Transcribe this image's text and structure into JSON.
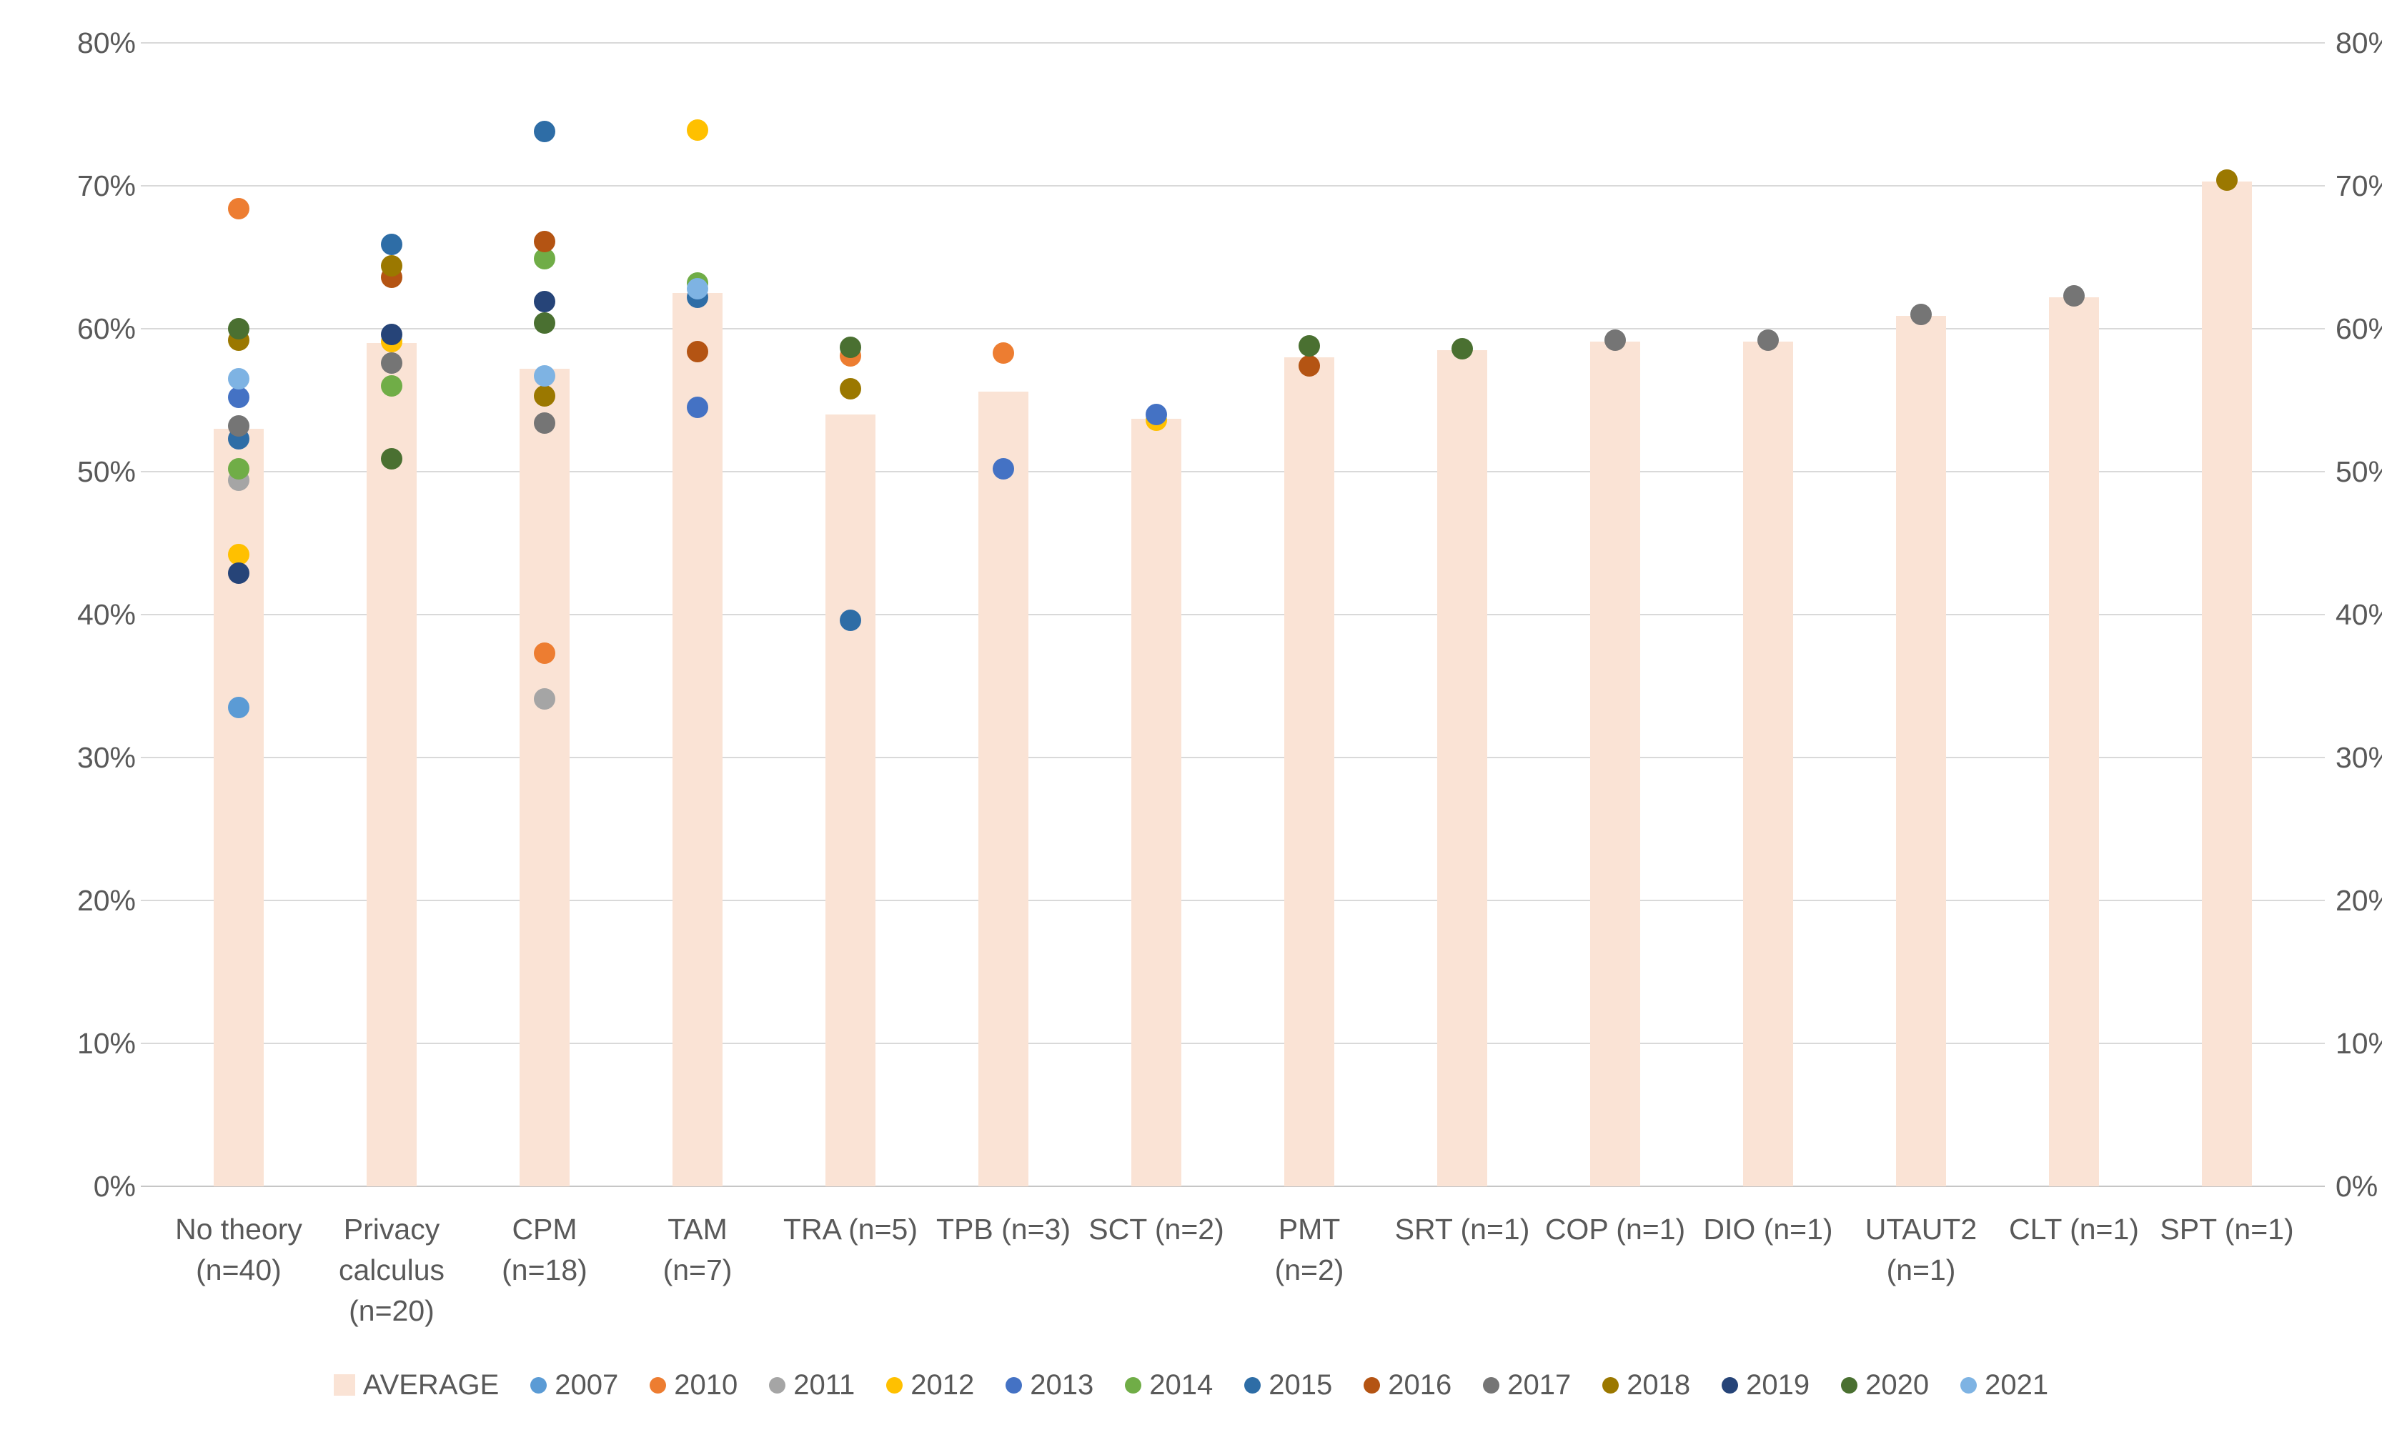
{
  "chart_data": {
    "type": "bar+scatter",
    "description": "Average percentage per theory (bars) with per-year average points (dots)",
    "y_axis": {
      "min": 0,
      "max": 80,
      "tick_step": 10,
      "tick_labels": [
        "0%",
        "10%",
        "20%",
        "30%",
        "40%",
        "50%",
        "60%",
        "70%",
        "80%"
      ],
      "mirrored_right_axis": true,
      "gridlines": true
    },
    "legend_position": "bottom",
    "bar_series_label": "AVERAGE",
    "year_series": [
      "2007",
      "2010",
      "2011",
      "2012",
      "2013",
      "2014",
      "2015",
      "2016",
      "2017",
      "2018",
      "2019",
      "2020",
      "2021"
    ],
    "colors": {
      "AVERAGE": "#FAE3D5",
      "2007": "#5B9BD5",
      "2010": "#ED7D31",
      "2011": "#A5A5A5",
      "2012": "#FFC000",
      "2013": "#4472C4",
      "2014": "#70AD47",
      "2015": "#2E6DA6",
      "2016": "#B45413",
      "2017": "#757575",
      "2018": "#9B7800",
      "2019": "#264478",
      "2020": "#4A7031",
      "2021": "#7EB3E3",
      "gridline": "#D9D9D9",
      "axis_text": "#595959"
    },
    "categories": [
      {
        "label": "No theory (n=40)",
        "label_lines": [
          "No theory",
          "(n=40)"
        ],
        "n": 40,
        "average": 53.0,
        "points": {
          "2010": 68.4,
          "2020": 60.0,
          "2018": 59.2,
          "2021": 56.5,
          "2013": 55.2,
          "2017": 53.2,
          "2015": 52.3,
          "2014": 50.2,
          "2011": 49.4,
          "2012": 44.2,
          "2019": 42.9,
          "2007": 33.5
        }
      },
      {
        "label": "Privacy calculus (n=20)",
        "label_lines": [
          "Privacy",
          "calculus",
          "(n=20)"
        ],
        "n": 20,
        "average": 59.0,
        "points": {
          "2015": 65.9,
          "2018": 64.4,
          "2016": 63.6,
          "2019": 59.6,
          "2012": 59.1,
          "2017": 57.6,
          "2014": 56.0,
          "2020": 50.9
        }
      },
      {
        "label": "CPM (n=18)",
        "label_lines": [
          "CPM",
          "(n=18)"
        ],
        "n": 18,
        "average": 57.2,
        "points": {
          "2015": 73.8,
          "2016": 66.1,
          "2014": 64.9,
          "2019": 61.9,
          "2020": 60.4,
          "2021": 56.7,
          "2018": 55.3,
          "2017": 53.4,
          "2010": 37.3,
          "2011": 34.1
        }
      },
      {
        "label": "TAM (n=7)",
        "label_lines": [
          "TAM",
          "(n=7)"
        ],
        "n": 7,
        "average": 62.5,
        "points": {
          "2012": 73.9,
          "2014": 63.2,
          "2021": 62.8,
          "2015": 62.2,
          "2016": 58.4,
          "2013": 54.5
        }
      },
      {
        "label": "TRA (n=5)",
        "label_lines": [
          "TRA (n=5)"
        ],
        "n": 5,
        "average": 54.0,
        "points": {
          "2020": 58.7,
          "2010": 58.1,
          "2018": 55.8,
          "2015": 39.6
        }
      },
      {
        "label": "TPB (n=3)",
        "label_lines": [
          "TPB (n=3)"
        ],
        "n": 3,
        "average": 55.6,
        "points": {
          "2010": 58.3,
          "2013": 50.2
        }
      },
      {
        "label": "SCT (n=2)",
        "label_lines": [
          "SCT (n=2)"
        ],
        "n": 2,
        "average": 53.7,
        "points": {
          "2013": 54.0,
          "2012": 53.6
        }
      },
      {
        "label": "PMT (n=2)",
        "label_lines": [
          "PMT",
          "(n=2)"
        ],
        "n": 2,
        "average": 58.0,
        "points": {
          "2020": 58.8,
          "2016": 57.4
        }
      },
      {
        "label": "SRT (n=1)",
        "label_lines": [
          "SRT (n=1)"
        ],
        "n": 1,
        "average": 58.5,
        "points": {
          "2020": 58.6
        }
      },
      {
        "label": "COP (n=1)",
        "label_lines": [
          "COP (n=1)"
        ],
        "n": 1,
        "average": 59.1,
        "points": {
          "2017": 59.2
        }
      },
      {
        "label": "DIO (n=1)",
        "label_lines": [
          "DIO (n=1)"
        ],
        "n": 1,
        "average": 59.1,
        "points": {
          "2017": 59.2
        }
      },
      {
        "label": "UTAUT2 (n=1)",
        "label_lines": [
          "UTAUT2",
          "(n=1)"
        ],
        "n": 1,
        "average": 60.9,
        "points": {
          "2017": 61.0
        }
      },
      {
        "label": "CLT (n=1)",
        "label_lines": [
          "CLT (n=1)"
        ],
        "n": 1,
        "average": 62.2,
        "points": {
          "2017": 62.3
        }
      },
      {
        "label": "SPT (n=1)",
        "label_lines": [
          "SPT (n=1)"
        ],
        "n": 1,
        "average": 70.3,
        "points": {
          "2018": 70.4
        }
      }
    ]
  }
}
